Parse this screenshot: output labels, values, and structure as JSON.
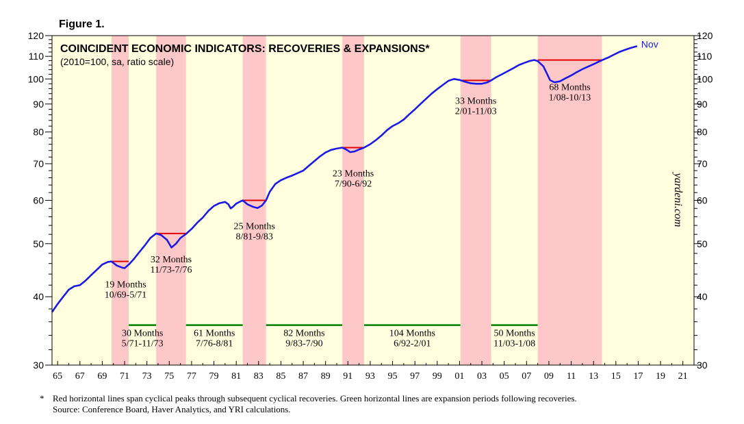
{
  "figure_label": "Figure 1.",
  "watermark": "yardeni.com",
  "footnote": {
    "marker": "*",
    "line1": "Red horizontal lines span cyclical peaks through subsequent cyclical recoveries. Green horizontal lines are expansion periods following recoveries.",
    "line2": "Source: Conference Board, Haver Analytics, and YRI calculations."
  },
  "colors": {
    "plot_background": "#FFFFE0",
    "series": "#1A1AE6",
    "recovery_band": "#FFC8C8",
    "peak_line": "#E00000",
    "expansion_line": "#008000",
    "text_blue": "#1A1AE6"
  },
  "chart_data": {
    "type": "line",
    "title": "COINCIDENT ECONOMIC INDICATORS: RECOVERIES & EXPANSIONS*",
    "subtitle": "(2010=100, sa, ratio scale)",
    "y_scale": "log",
    "ylim": [
      30,
      120
    ],
    "xlim": [
      1964.5,
      2022
    ],
    "y_ticks": [
      30,
      40,
      50,
      60,
      70,
      80,
      90,
      100,
      110,
      120
    ],
    "x_tick_labels": [
      "65",
      "67",
      "69",
      "71",
      "73",
      "75",
      "77",
      "79",
      "81",
      "83",
      "85",
      "87",
      "89",
      "91",
      "93",
      "95",
      "97",
      "99",
      "01",
      "03",
      "05",
      "07",
      "09",
      "11",
      "13",
      "15",
      "17",
      "19",
      "21"
    ],
    "x_tick_years": [
      1965,
      1967,
      1969,
      1971,
      1973,
      1975,
      1977,
      1979,
      1981,
      1983,
      1985,
      1987,
      1989,
      1991,
      1993,
      1995,
      1997,
      1999,
      2001,
      2003,
      2005,
      2007,
      2009,
      2011,
      2013,
      2015,
      2017,
      2019,
      2021
    ],
    "series": [
      {
        "name": "Coincident Economic Indicators",
        "end_label": "Nov",
        "points": [
          [
            1964.5,
            37.5
          ],
          [
            1965.0,
            38.8
          ],
          [
            1965.5,
            40.0
          ],
          [
            1966.0,
            41.2
          ],
          [
            1966.5,
            41.8
          ],
          [
            1967.0,
            42.0
          ],
          [
            1967.5,
            42.8
          ],
          [
            1968.0,
            43.8
          ],
          [
            1968.5,
            44.8
          ],
          [
            1969.0,
            45.8
          ],
          [
            1969.5,
            46.3
          ],
          [
            1969.83,
            46.4
          ],
          [
            1970.3,
            45.6
          ],
          [
            1970.8,
            45.2
          ],
          [
            1971.0,
            45.1
          ],
          [
            1971.37,
            45.8
          ],
          [
            1971.8,
            46.8
          ],
          [
            1972.3,
            48.2
          ],
          [
            1972.8,
            49.6
          ],
          [
            1973.3,
            51.2
          ],
          [
            1973.83,
            52.2
          ],
          [
            1974.3,
            51.8
          ],
          [
            1974.8,
            50.8
          ],
          [
            1975.2,
            49.2
          ],
          [
            1975.6,
            50.0
          ],
          [
            1976.0,
            51.2
          ],
          [
            1976.5,
            52.1
          ],
          [
            1977.0,
            53.2
          ],
          [
            1977.5,
            54.6
          ],
          [
            1978.0,
            55.8
          ],
          [
            1978.5,
            57.4
          ],
          [
            1979.0,
            58.6
          ],
          [
            1979.5,
            59.3
          ],
          [
            1980.0,
            59.6
          ],
          [
            1980.3,
            59.0
          ],
          [
            1980.5,
            58.0
          ],
          [
            1980.7,
            58.4
          ],
          [
            1981.0,
            59.2
          ],
          [
            1981.58,
            60.0
          ],
          [
            1982.0,
            59.0
          ],
          [
            1982.5,
            58.4
          ],
          [
            1982.9,
            58.1
          ],
          [
            1983.3,
            58.7
          ],
          [
            1983.67,
            60.0
          ],
          [
            1984.0,
            62.2
          ],
          [
            1984.5,
            64.3
          ],
          [
            1985.0,
            65.3
          ],
          [
            1985.5,
            66.0
          ],
          [
            1986.0,
            66.6
          ],
          [
            1986.5,
            67.3
          ],
          [
            1987.0,
            68.0
          ],
          [
            1987.5,
            69.4
          ],
          [
            1988.0,
            70.8
          ],
          [
            1988.5,
            72.2
          ],
          [
            1989.0,
            73.4
          ],
          [
            1989.5,
            74.2
          ],
          [
            1990.0,
            74.6
          ],
          [
            1990.5,
            74.9
          ],
          [
            1990.9,
            74.2
          ],
          [
            1991.2,
            73.5
          ],
          [
            1991.6,
            73.7
          ],
          [
            1992.0,
            74.3
          ],
          [
            1992.45,
            74.9
          ],
          [
            1993.0,
            76.0
          ],
          [
            1993.5,
            77.3
          ],
          [
            1994.0,
            78.8
          ],
          [
            1994.5,
            80.6
          ],
          [
            1995.0,
            82.0
          ],
          [
            1995.5,
            83.0
          ],
          [
            1996.0,
            84.3
          ],
          [
            1996.5,
            86.2
          ],
          [
            1997.0,
            88.0
          ],
          [
            1997.5,
            90.0
          ],
          [
            1998.0,
            92.0
          ],
          [
            1998.5,
            94.0
          ],
          [
            1999.0,
            95.8
          ],
          [
            1999.5,
            97.5
          ],
          [
            2000.0,
            99.2
          ],
          [
            2000.5,
            100.0
          ],
          [
            2001.0,
            99.6
          ],
          [
            2001.5,
            98.8
          ],
          [
            2002.0,
            98.2
          ],
          [
            2002.5,
            98.0
          ],
          [
            2003.0,
            98.0
          ],
          [
            2003.5,
            98.6
          ],
          [
            2003.83,
            99.4
          ],
          [
            2004.3,
            100.8
          ],
          [
            2004.8,
            102.0
          ],
          [
            2005.3,
            103.3
          ],
          [
            2005.8,
            104.6
          ],
          [
            2006.3,
            106.0
          ],
          [
            2006.8,
            107.0
          ],
          [
            2007.3,
            107.9
          ],
          [
            2007.7,
            108.3
          ],
          [
            2008.0,
            107.8
          ],
          [
            2008.5,
            105.5
          ],
          [
            2008.8,
            102.5
          ],
          [
            2009.1,
            99.5
          ],
          [
            2009.5,
            98.6
          ],
          [
            2010.0,
            99.0
          ],
          [
            2010.5,
            100.3
          ],
          [
            2011.0,
            101.5
          ],
          [
            2011.5,
            102.9
          ],
          [
            2012.0,
            104.2
          ],
          [
            2012.5,
            105.3
          ],
          [
            2013.0,
            106.4
          ],
          [
            2013.5,
            107.6
          ],
          [
            2013.8,
            108.3
          ],
          [
            2014.3,
            109.4
          ],
          [
            2014.8,
            110.7
          ],
          [
            2015.3,
            112.0
          ],
          [
            2015.8,
            113.0
          ],
          [
            2016.3,
            113.9
          ],
          [
            2016.9,
            114.8
          ]
        ]
      }
    ],
    "recovery_periods": [
      {
        "start": 1969.83,
        "end": 1971.37,
        "peak_level": 46.4,
        "months_label": "19 Months",
        "dates_label": "10/69-5/71"
      },
      {
        "start": 1973.83,
        "end": 1976.5,
        "peak_level": 52.2,
        "months_label": "32 Months",
        "dates_label": "11/73-7/76"
      },
      {
        "start": 1981.58,
        "end": 1983.67,
        "peak_level": 60.0,
        "months_label": "25 Months",
        "dates_label": "8/81-9/83"
      },
      {
        "start": 1990.5,
        "end": 1992.45,
        "peak_level": 74.9,
        "months_label": "23 Months",
        "dates_label": "7/90-6/92"
      },
      {
        "start": 2001.08,
        "end": 2003.83,
        "peak_level": 99.4,
        "months_label": "33 Months",
        "dates_label": "2/01-11/03"
      },
      {
        "start": 2008.0,
        "end": 2013.75,
        "peak_level": 108.3,
        "months_label": "68 Months",
        "dates_label": "1/08-10/13"
      }
    ],
    "expansion_periods": [
      {
        "start": 1971.37,
        "end": 1973.83,
        "months_label": "30 Months",
        "dates_label": "5/71-11/73"
      },
      {
        "start": 1976.5,
        "end": 1981.58,
        "months_label": "61 Months",
        "dates_label": "7/76-8/81"
      },
      {
        "start": 1983.67,
        "end": 1990.5,
        "months_label": "82 Months",
        "dates_label": "9/83-7/90"
      },
      {
        "start": 1992.45,
        "end": 2001.08,
        "months_label": "104 Months",
        "dates_label": "6/92-2/01"
      },
      {
        "start": 2003.83,
        "end": 2008.0,
        "months_label": "50 Months",
        "dates_label": "11/03-1/08"
      }
    ],
    "expansion_level": 35.5
  }
}
